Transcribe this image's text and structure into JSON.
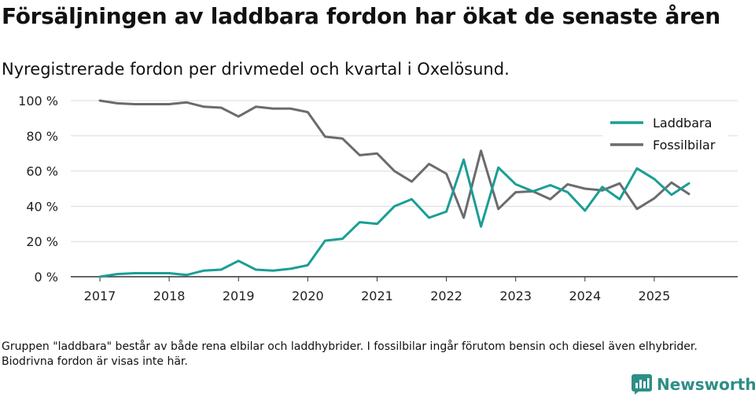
{
  "title": "Försäljningen av laddbara fordon har ökat de senaste åren",
  "subtitle": "Nyregistrerade fordon per drivmedel och kvartal i Oxelösund.",
  "footnote": "Gruppen \"laddbara\" består av både rena elbilar och laddhybrider. I fossilbilar ingår förutom bensin och diesel även elhybrider. Biodrivna fordon är visas inte här.",
  "brand": {
    "name": "Newsworthy",
    "icon": "newsworthy-logo-icon",
    "color": "#2e8e86"
  },
  "chart_data": {
    "type": "line",
    "title": "Försäljningen av laddbara fordon har ökat de senaste åren",
    "xlabel": "",
    "ylabel": "",
    "ylim": [
      0,
      100
    ],
    "xlim": [
      2017,
      2025.75
    ],
    "y_ticks": [
      0,
      20,
      40,
      60,
      80,
      100
    ],
    "y_tick_labels": [
      "0 %",
      "20 %",
      "40 %",
      "60 %",
      "80 %",
      "100 %"
    ],
    "x_ticks": [
      2017,
      2018,
      2019,
      2020,
      2021,
      2022,
      2023,
      2024,
      2025
    ],
    "x_tick_labels": [
      "2017",
      "2018",
      "2019",
      "2020",
      "2021",
      "2022",
      "2023",
      "2024",
      "2025"
    ],
    "grid": true,
    "legend_position": "top-right",
    "x": [
      2017.0,
      2017.25,
      2017.5,
      2017.75,
      2018.0,
      2018.25,
      2018.5,
      2018.75,
      2019.0,
      2019.25,
      2019.5,
      2019.75,
      2020.0,
      2020.25,
      2020.5,
      2020.75,
      2021.0,
      2021.25,
      2021.5,
      2021.75,
      2022.0,
      2022.25,
      2022.5,
      2022.75,
      2023.0,
      2023.25,
      2023.5,
      2023.75,
      2024.0,
      2024.25,
      2024.5,
      2024.75,
      2025.0,
      2025.25,
      2025.5
    ],
    "series": [
      {
        "name": "Laddbara",
        "color": "#1a9e95",
        "values": [
          0,
          1.5,
          2,
          2,
          2,
          1,
          3.5,
          4,
          9,
          4,
          3.5,
          4.5,
          6.5,
          20.5,
          21.5,
          31,
          30,
          40,
          44,
          33.5,
          37,
          66.5,
          28.5,
          62,
          52.5,
          48.5,
          52,
          48,
          37.5,
          51,
          44,
          61.5,
          55.5,
          46.5,
          53
        ]
      },
      {
        "name": "Fossilbilar",
        "color": "#6b6b6f",
        "values": [
          100,
          98.5,
          98,
          98,
          98,
          99,
          96.5,
          96,
          91,
          96.5,
          95.5,
          95.5,
          93.5,
          79.5,
          78.5,
          69,
          70,
          60,
          54,
          64,
          58.5,
          33.5,
          71.5,
          38.5,
          48,
          48.5,
          44,
          52.5,
          50,
          49,
          53,
          38.5,
          44.5,
          53.5,
          47
        ]
      }
    ]
  }
}
